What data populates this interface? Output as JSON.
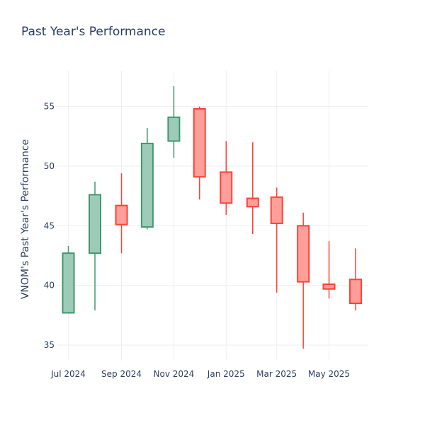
{
  "chart_data": {
    "type": "candlestick",
    "title": "Past Year's Performance",
    "ylabel": "VNOM's Past Year's Performance",
    "xlabel": "",
    "ylim": [
      33.7,
      58.0
    ],
    "y_ticks": [
      35,
      40,
      45,
      50,
      55
    ],
    "x_ticks": [
      {
        "date": "2024-07-01",
        "label": "Jul 2024"
      },
      {
        "date": "2024-09-01",
        "label": "Sep 2024"
      },
      {
        "date": "2024-11-01",
        "label": "Nov 2024"
      },
      {
        "date": "2025-01-01",
        "label": "Jan 2025"
      },
      {
        "date": "2025-03-01",
        "label": "Mar 2025"
      },
      {
        "date": "2025-05-01",
        "label": "May 2025"
      }
    ],
    "grid": true,
    "colors": {
      "increasing": "#3d9970",
      "increasing_fill": "#9ecbb7",
      "decreasing": "#ff4136",
      "decreasing_fill": "#ff9f9a"
    },
    "candles": [
      {
        "date": "2024-07-01",
        "open": 37.7,
        "high": 43.3,
        "low": 37.7,
        "close": 42.7
      },
      {
        "date": "2024-08-01",
        "open": 42.7,
        "high": 48.7,
        "low": 37.9,
        "close": 47.6
      },
      {
        "date": "2024-09-01",
        "open": 46.7,
        "high": 49.4,
        "low": 42.7,
        "close": 45.1
      },
      {
        "date": "2024-10-01",
        "open": 44.9,
        "high": 53.2,
        "low": 44.7,
        "close": 51.9
      },
      {
        "date": "2024-11-01",
        "open": 52.1,
        "high": 56.7,
        "low": 50.7,
        "close": 54.1
      },
      {
        "date": "2024-12-01",
        "open": 54.8,
        "high": 55.0,
        "low": 47.2,
        "close": 49.1
      },
      {
        "date": "2025-01-01",
        "open": 49.5,
        "high": 52.1,
        "low": 45.9,
        "close": 46.9
      },
      {
        "date": "2025-02-01",
        "open": 47.3,
        "high": 52.0,
        "low": 44.3,
        "close": 46.6
      },
      {
        "date": "2025-03-01",
        "open": 47.4,
        "high": 48.2,
        "low": 39.4,
        "close": 45.2
      },
      {
        "date": "2025-04-01",
        "open": 45.0,
        "high": 46.1,
        "low": 34.7,
        "close": 40.3
      },
      {
        "date": "2025-05-01",
        "open": 40.1,
        "high": 43.7,
        "low": 38.9,
        "close": 39.7
      },
      {
        "date": "2025-06-01",
        "open": 40.5,
        "high": 43.1,
        "low": 37.9,
        "close": 38.5
      }
    ]
  }
}
